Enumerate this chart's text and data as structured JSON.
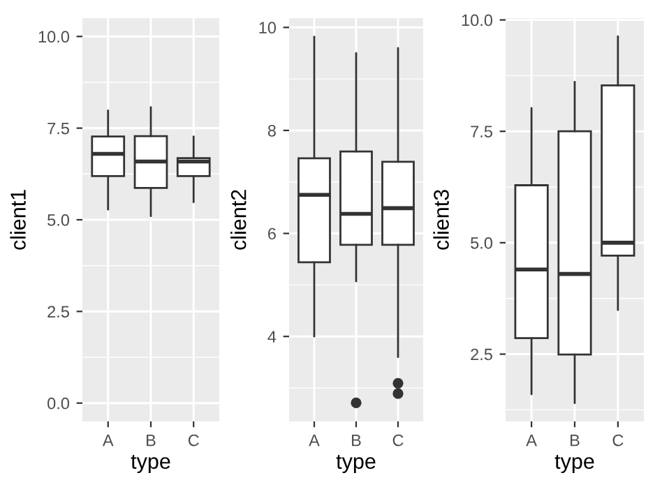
{
  "chart_data": [
    {
      "type": "box",
      "xlabel": "type",
      "ylabel": "client1",
      "categories": [
        "A",
        "B",
        "C"
      ],
      "ylim": [
        -0.5,
        10.5
      ],
      "yticks": [
        {
          "value": 0,
          "label": "0.0"
        },
        2.5,
        {
          "value": 5,
          "label": "5.0"
        },
        7.5,
        {
          "value": 10,
          "label": "10.0"
        }
      ],
      "grid": true,
      "boxes": [
        {
          "low": 5.28,
          "q1": 6.19,
          "median": 6.8,
          "q3": 7.27,
          "high": 7.98
        },
        {
          "low": 5.1,
          "q1": 5.87,
          "median": 6.59,
          "q3": 7.28,
          "high": 8.07
        },
        {
          "low": 5.48,
          "q1": 6.19,
          "median": 6.59,
          "q3": 6.68,
          "high": 7.27
        }
      ]
    },
    {
      "type": "box",
      "xlabel": "type",
      "ylabel": "client2",
      "categories": [
        "A",
        "B",
        "C"
      ],
      "ylim": [
        2.35,
        10.18
      ],
      "yticks": [
        4,
        6,
        8,
        10
      ],
      "grid": true,
      "boxes": [
        {
          "low": 4.0,
          "q1": 5.44,
          "median": 6.75,
          "q3": 7.46,
          "high": 9.82
        },
        {
          "low": 5.07,
          "q1": 5.78,
          "median": 6.38,
          "q3": 7.59,
          "high": 9.5,
          "outliers": [
            2.71
          ]
        },
        {
          "low": 3.6,
          "q1": 5.78,
          "median": 6.49,
          "q3": 7.39,
          "high": 9.6,
          "outliers": [
            3.09,
            2.89
          ]
        }
      ]
    },
    {
      "type": "box",
      "xlabel": "type",
      "ylabel": "client3",
      "categories": [
        "A",
        "B",
        "C"
      ],
      "ylim": [
        0.99,
        10.04
      ],
      "yticks": [
        2.5,
        {
          "value": 5,
          "label": "5.0"
        },
        7.5,
        {
          "value": 10,
          "label": "10.0"
        }
      ],
      "grid": true,
      "boxes": [
        {
          "low": 1.6,
          "q1": 2.86,
          "median": 4.4,
          "q3": 6.29,
          "high": 8.02
        },
        {
          "low": 1.4,
          "q1": 2.49,
          "median": 4.3,
          "q3": 7.5,
          "high": 8.61
        },
        {
          "low": 3.49,
          "q1": 4.71,
          "median": 5.0,
          "q3": 8.53,
          "high": 9.63
        }
      ]
    }
  ]
}
